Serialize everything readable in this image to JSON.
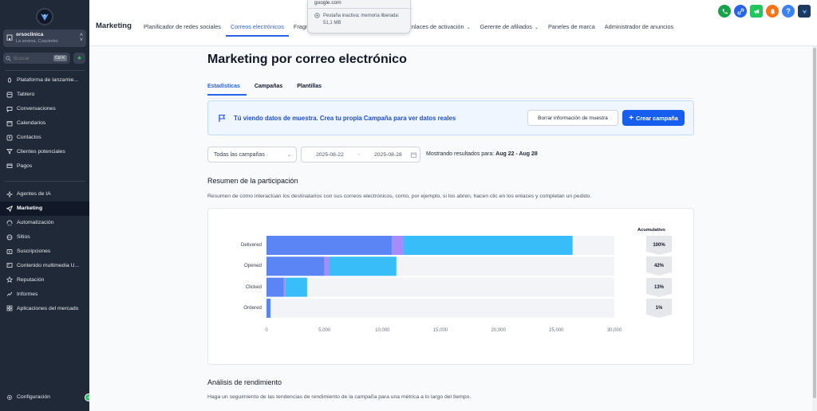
{
  "sidebar": {
    "location": {
      "name": "orsoclinica",
      "sub": "La serena, Coquimbo"
    },
    "search": {
      "placeholder": "Buscar",
      "shortcut": "Ctrl K"
    },
    "nav_top": [
      {
        "label": "Plataforma de lanzamie...",
        "icon": "rocket-icon"
      },
      {
        "label": "Tablero",
        "icon": "dashboard-icon"
      },
      {
        "label": "Conversaciones",
        "icon": "chat-icon"
      },
      {
        "label": "Calendarios",
        "icon": "calendar-icon"
      },
      {
        "label": "Contactos",
        "icon": "contacts-icon"
      },
      {
        "label": "Clientes potenciales",
        "icon": "funnel-icon"
      },
      {
        "label": "Pagos",
        "icon": "payments-icon"
      }
    ],
    "nav_bottom": [
      {
        "label": "Agentes de IA",
        "icon": "sparkle-icon"
      },
      {
        "label": "Marketing",
        "icon": "send-icon",
        "active": true
      },
      {
        "label": "Automatización",
        "icon": "automation-icon"
      },
      {
        "label": "Sitios",
        "icon": "globe-icon"
      },
      {
        "label": "Suscripciones",
        "icon": "membership-icon"
      },
      {
        "label": "Contenido multimedia U...",
        "icon": "media-icon"
      },
      {
        "label": "Reputación",
        "icon": "star-icon"
      },
      {
        "label": "Informes",
        "icon": "reports-icon"
      },
      {
        "label": "Aplicaciones del mercado",
        "icon": "apps-icon"
      }
    ],
    "settings": "Configuración"
  },
  "topbar": {
    "section": "Marketing",
    "tabs": [
      {
        "label": "Planificador de redes sociales"
      },
      {
        "label": "Correos electrónicos",
        "active": true
      },
      {
        "label": "Fragm"
      },
      {
        "label": "Enlaces de activación",
        "dropdown": true
      },
      {
        "label": "Gerente de afiliados",
        "dropdown": true
      },
      {
        "label": "Paneles de marca"
      },
      {
        "label": "Administrador de anuncios"
      }
    ],
    "tooltip": {
      "url": "google.com",
      "text": "Pestaña inactiva; memoria liberada: 51,1 MB"
    },
    "icon_colors": {
      "phone": "#16a34a",
      "megaphone": "#22c55e",
      "link": "#2563eb",
      "bell": "#f97316",
      "help": "#3b82f6",
      "brand": "#1e3a5f"
    }
  },
  "page": {
    "title": "Marketing por correo electrónico",
    "tabs": [
      "Estadísticas",
      "Campañas",
      "Plantillas"
    ],
    "banner": {
      "text": "Tú viendo datos de muestra. Crea tu propia Campaña para ver datos reales",
      "clear_button": "Borrar información de muestra",
      "create_button": "Crear campaña"
    },
    "filters": {
      "campaign_select": "Todas las campañas",
      "date_start": "2025-08-22",
      "date_end": "2025-08-28",
      "results_prefix": "Mostrando resultados para:",
      "results_range": "Aug 22 - Aug 28"
    },
    "engagement": {
      "title": "Resumen de la participación",
      "description": "Resumen de cómo interactúan los destinatarios con sus correos electrónicos, como, por ejemplo, si los abren, hacen clic en los enlaces y completan un pedido.",
      "cumulative_title": "Acumulativo"
    },
    "performance": {
      "title": "Análisis de rendimiento",
      "description": "Haga un seguimiento de las tendencias de rendimiento de la campaña para una métrica a lo largo del tiempo."
    }
  },
  "chart_data": {
    "type": "bar",
    "orientation": "horizontal-stacked",
    "categories": [
      "Delivered",
      "Opened",
      "Clicked",
      "Ordered"
    ],
    "series": [
      {
        "color": "#5b84f5",
        "values": [
          10800,
          5000,
          1500,
          350
        ]
      },
      {
        "color": "#a78bfa",
        "values": [
          1000,
          400,
          100,
          0
        ]
      },
      {
        "color": "#38bdf8",
        "values": [
          14600,
          5800,
          1900,
          0
        ]
      }
    ],
    "x_ticks": [
      "0",
      "5,000",
      "10,000",
      "15,000",
      "20,000",
      "25,000",
      "30,000"
    ],
    "xlim": [
      0,
      30000
    ],
    "background_color": "#f3f4f8",
    "cumulative": [
      "100%",
      "42%",
      "13%",
      "1%"
    ]
  }
}
